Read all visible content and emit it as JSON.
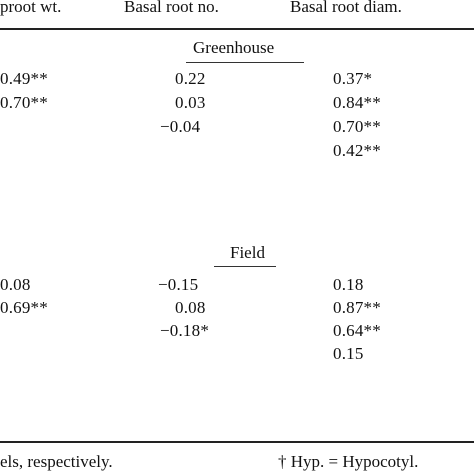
{
  "table": {
    "headers": [
      "proot wt.",
      "Basal root no.",
      "Basal root diam."
    ],
    "sections": [
      {
        "title": "Greenhouse",
        "rows": [
          [
            "0.49**",
            "0.22",
            "0.37*"
          ],
          [
            "0.70**",
            "0.03",
            "0.84**"
          ],
          [
            "",
            "−0.04",
            "0.70**"
          ],
          [
            "",
            "",
            "0.42**"
          ]
        ]
      },
      {
        "title": "Field",
        "rows": [
          [
            "0.08",
            "−0.15",
            "0.18"
          ],
          [
            "0.69**",
            "0.08",
            "0.87**"
          ],
          [
            "",
            "−0.18*",
            "0.64**"
          ],
          [
            "",
            "",
            "0.15"
          ]
        ]
      }
    ]
  },
  "footnotes": {
    "left": "els, respectively.",
    "right": "† Hyp. = Hypocotyl."
  }
}
